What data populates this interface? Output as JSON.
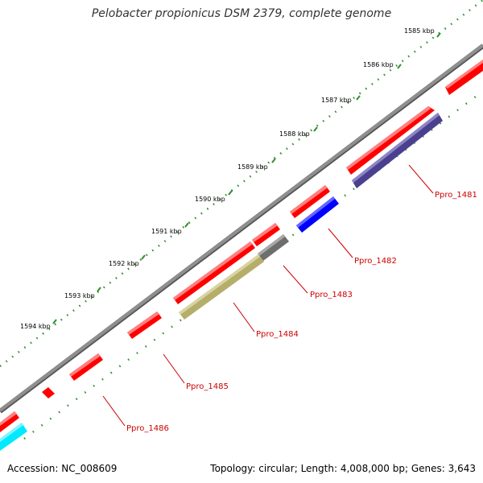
{
  "title": "Pelobacter propionicus DSM 2379, complete genome",
  "footer": {
    "accession_label": "Accession:",
    "accession": "NC_008609",
    "topology_label": "Topology:",
    "topology": "circular",
    "length_label": "Length:",
    "length": "4,008,000 bp",
    "genes_label": "Genes:",
    "genes": "3,643"
  },
  "scale_labels": [
    "1585 kbp",
    "1586 kbp",
    "1587 kbp",
    "1588 kbp",
    "1589 kbp",
    "1590 kbp",
    "1591 kbp",
    "1592 kbp",
    "1593 kbp",
    "1594 kbp"
  ],
  "gene_labels": [
    "Ppro_1481",
    "Ppro_1482",
    "Ppro_1483",
    "Ppro_1484",
    "Ppro_1485",
    "Ppro_1486"
  ],
  "colors": {
    "backbone": "#808080",
    "tick": "#2e8b2e",
    "feature_red": "#ff0000",
    "cds_navy": "#4b3f8f",
    "cds_blue": "#0000ff",
    "cds_gray": "#6e6e6e",
    "cds_olive": "#b5ad6a",
    "cds_cyan": "#00eaff",
    "label_line": "#cc0000"
  }
}
